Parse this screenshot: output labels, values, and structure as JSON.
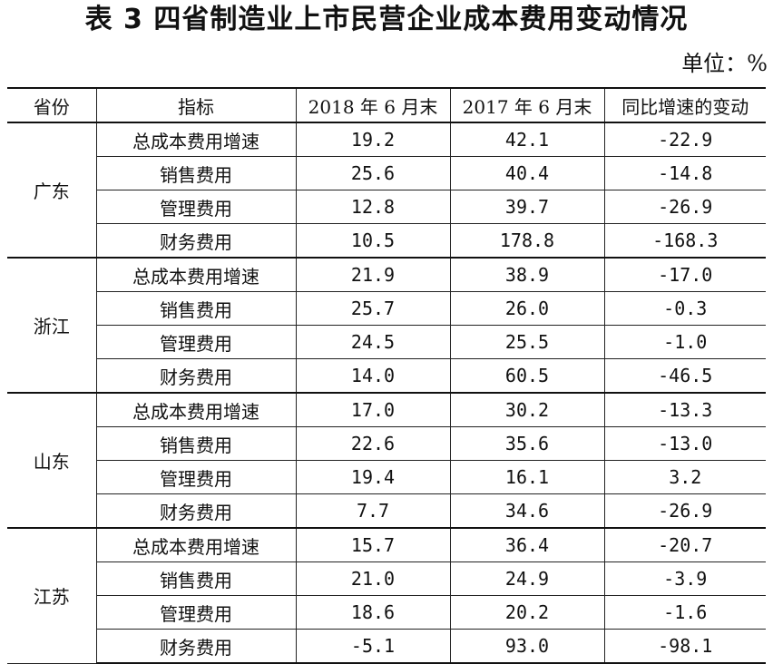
{
  "title": "表 3  四省制造业上市民营企业成本费用变动情况",
  "unit": "单位：%",
  "table": {
    "headers": [
      "省份",
      "指标",
      "2018 年 6 月末",
      "2017 年 6 月末",
      "同比增速的变动"
    ],
    "groups": [
      {
        "province": "广东",
        "rows": [
          {
            "indicator": "总成本费用增速",
            "y2018": "19.2",
            "y2017": "42.1",
            "change": "-22.9"
          },
          {
            "indicator": "销售费用",
            "y2018": "25.6",
            "y2017": "40.4",
            "change": "-14.8"
          },
          {
            "indicator": "管理费用",
            "y2018": "12.8",
            "y2017": "39.7",
            "change": "-26.9"
          },
          {
            "indicator": "财务费用",
            "y2018": "10.5",
            "y2017": "178.8",
            "change": "-168.3"
          }
        ]
      },
      {
        "province": "浙江",
        "rows": [
          {
            "indicator": "总成本费用增速",
            "y2018": "21.9",
            "y2017": "38.9",
            "change": "-17.0"
          },
          {
            "indicator": "销售费用",
            "y2018": "25.7",
            "y2017": "26.0",
            "change": "-0.3"
          },
          {
            "indicator": "管理费用",
            "y2018": "24.5",
            "y2017": "25.5",
            "change": "-1.0"
          },
          {
            "indicator": "财务费用",
            "y2018": "14.0",
            "y2017": "60.5",
            "change": "-46.5"
          }
        ]
      },
      {
        "province": "山东",
        "rows": [
          {
            "indicator": "总成本费用增速",
            "y2018": "17.0",
            "y2017": "30.2",
            "change": "-13.3"
          },
          {
            "indicator": "销售费用",
            "y2018": "22.6",
            "y2017": "35.6",
            "change": "-13.0"
          },
          {
            "indicator": "管理费用",
            "y2018": "19.4",
            "y2017": "16.1",
            "change": "3.2"
          },
          {
            "indicator": "财务费用",
            "y2018": "7.7",
            "y2017": "34.6",
            "change": "-26.9"
          }
        ]
      },
      {
        "province": "江苏",
        "rows": [
          {
            "indicator": "总成本费用增速",
            "y2018": "15.7",
            "y2017": "36.4",
            "change": "-20.7"
          },
          {
            "indicator": "销售费用",
            "y2018": "21.0",
            "y2017": "24.9",
            "change": "-3.9"
          },
          {
            "indicator": "管理费用",
            "y2018": "18.6",
            "y2017": "20.2",
            "change": "-1.6"
          },
          {
            "indicator": "财务费用",
            "y2018": "-5.1",
            "y2017": "93.0",
            "change": "-98.1"
          }
        ]
      }
    ]
  }
}
